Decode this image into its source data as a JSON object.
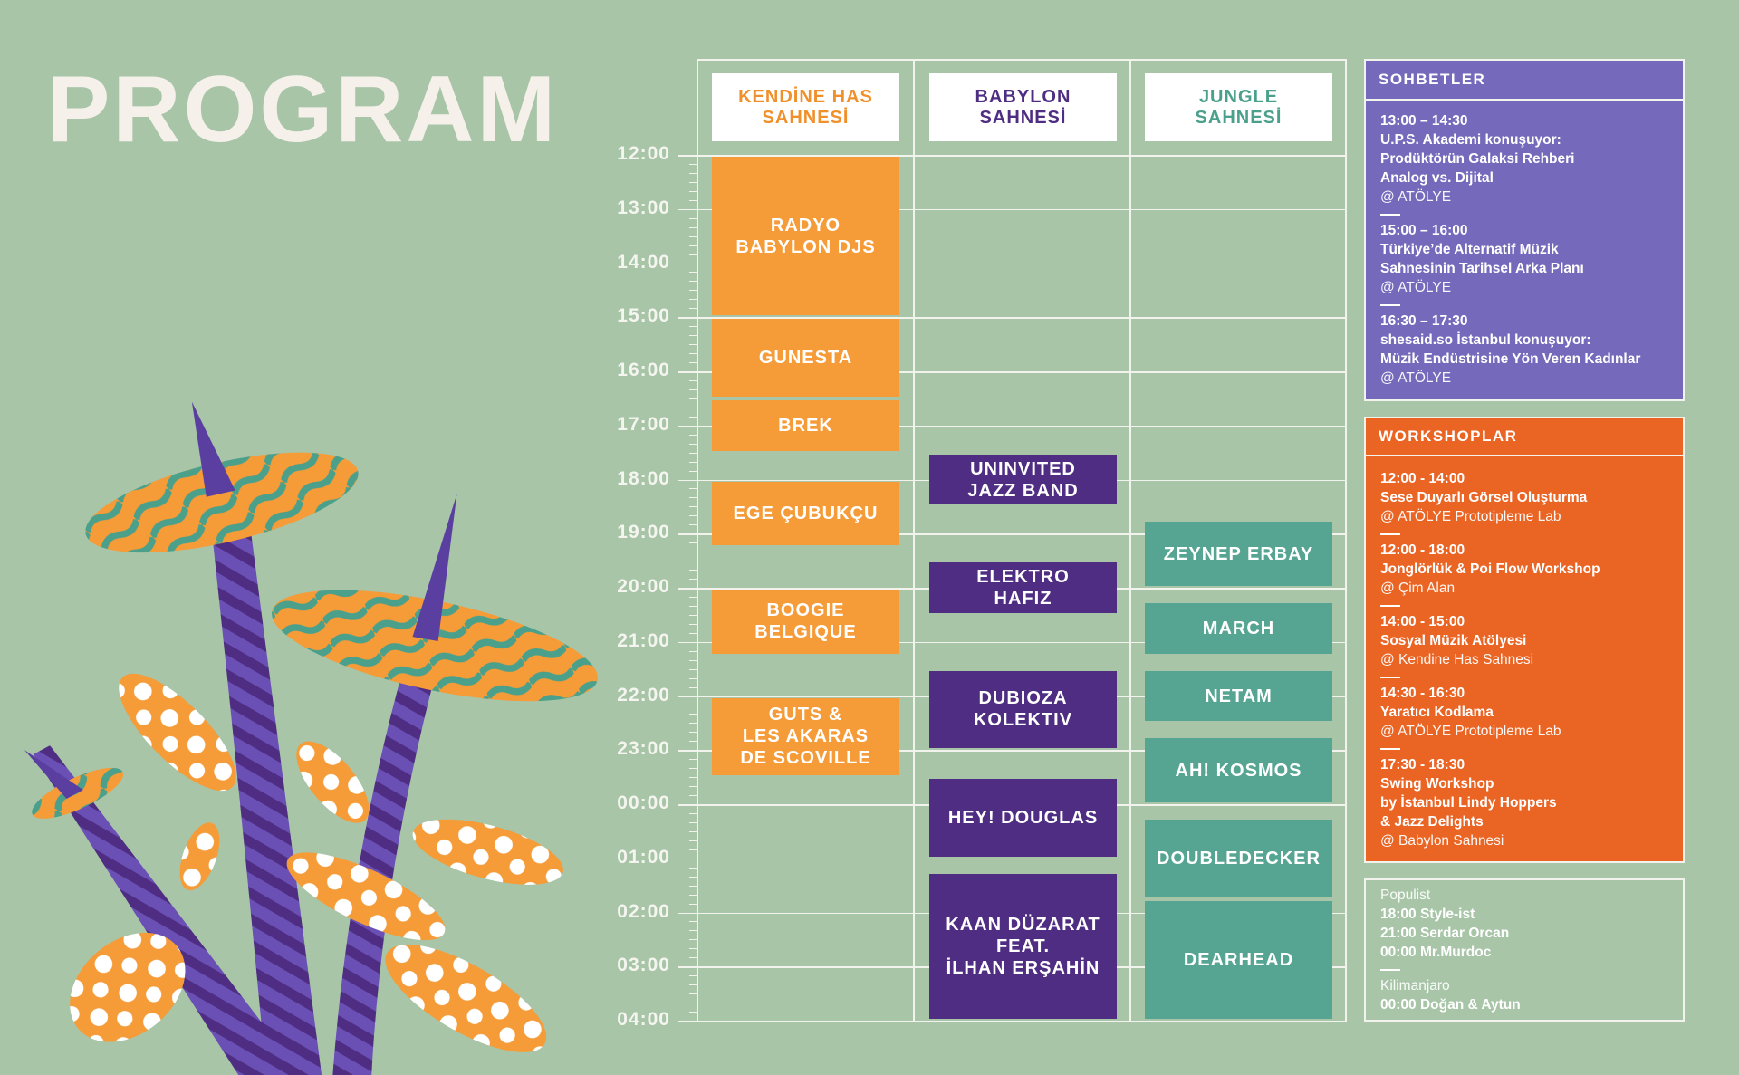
{
  "title": "PROGRAM",
  "colors": {
    "background": "#a8c5a8",
    "orange": "#f59b38",
    "purple": "#4e2d82",
    "teal": "#56a592",
    "talks": "#7569bb",
    "workshops": "#ea6424"
  },
  "hours": [
    "12:00",
    "13:00",
    "14:00",
    "15:00",
    "16:00",
    "17:00",
    "18:00",
    "19:00",
    "20:00",
    "21:00",
    "22:00",
    "23:00",
    "00:00",
    "01:00",
    "02:00",
    "03:00",
    "04:00"
  ],
  "stages": [
    {
      "name": "KENDİNE HAS\nSAHNESİ",
      "color": "#f59b38",
      "head_color": "#f0902a",
      "events": [
        {
          "label": "RADYO\nBABYLON DJS",
          "start": "12:00",
          "end": "15:00"
        },
        {
          "label": "GUNESTA",
          "start": "15:00",
          "end": "16:30"
        },
        {
          "label": "BREK",
          "start": "16:30",
          "end": "17:30"
        },
        {
          "label": "EGE ÇUBUKÇU",
          "start": "18:00",
          "end": "19:15"
        },
        {
          "label": "BOOGIE\nBELGIQUE",
          "start": "20:00",
          "end": "21:15"
        },
        {
          "label": "GUTS &\nLES AKARAS\nDE SCOVILLE",
          "start": "22:00",
          "end": "23:30"
        }
      ]
    },
    {
      "name": "BABYLON\nSAHNESİ",
      "color": "#4e2d82",
      "head_color": "#4e2d82",
      "events": [
        {
          "label": "UNINVITED\nJAZZ BAND",
          "start": "17:30",
          "end": "18:30"
        },
        {
          "label": "ELEKTRO\nHAFIZ",
          "start": "19:30",
          "end": "20:30"
        },
        {
          "label": "DUBIOZA\nKOLEKTIV",
          "start": "21:30",
          "end": "23:00"
        },
        {
          "label": "HEY! DOUGLAS",
          "start": "23:30",
          "end": "01:00"
        },
        {
          "label": "KAAN DÜZARAT\nFEAT.\nİLHAN ERŞAHİN",
          "start": "01:15",
          "end": "04:00"
        }
      ]
    },
    {
      "name": "JUNGLE\nSAHNESİ",
      "color": "#56a592",
      "head_color": "#4aa08a",
      "events": [
        {
          "label": "ZEYNEP ERBAY",
          "start": "18:45",
          "end": "20:00"
        },
        {
          "label": "MARCH",
          "start": "20:15",
          "end": "21:15"
        },
        {
          "label": "NETAM",
          "start": "21:30",
          "end": "22:30"
        },
        {
          "label": "AH! KOSMOS",
          "start": "22:45",
          "end": "00:00"
        },
        {
          "label": "DOUBLEDECKER",
          "start": "00:15",
          "end": "01:45"
        },
        {
          "label": "DEARHEAD",
          "start": "01:45",
          "end": "04:00"
        }
      ]
    }
  ],
  "talks": {
    "heading": "SOHBETLER",
    "items": [
      {
        "time": "13:00 – 14:30",
        "title": [
          "U.P.S. Akademi konuşuyor:",
          "Prodüktörün Galaksi Rehberi",
          "Analog vs. Dijital"
        ],
        "venue": "@ ATÖLYE"
      },
      {
        "time": "15:00 – 16:00",
        "title": [
          "Türkiye’de Alternatif Müzik",
          "Sahnesinin Tarihsel Arka Planı"
        ],
        "venue": "@ ATÖLYE"
      },
      {
        "time": "16:30 – 17:30",
        "title": [
          "shesaid.so İstanbul konuşuyor:",
          "Müzik Endüstrisine Yön Veren Kadınlar"
        ],
        "venue": "@ ATÖLYE"
      }
    ]
  },
  "workshops": {
    "heading": "WORKSHOPLAR",
    "items": [
      {
        "time": "12:00 - 14:00",
        "title": [
          "Sese Duyarlı Görsel Oluşturma"
        ],
        "venue": "@ ATÖLYE Prototipleme Lab"
      },
      {
        "time": "12:00 - 18:00",
        "title": [
          "Jonglörlük & Poi Flow Workshop"
        ],
        "venue": "@ Çim Alan"
      },
      {
        "time": "14:00 - 15:00",
        "title": [
          "Sosyal Müzik Atölyesi"
        ],
        "venue": "@ Kendine Has Sahnesi"
      },
      {
        "time": "14:30 - 16:30",
        "title": [
          "Yaratıcı Kodlama"
        ],
        "venue": "@ ATÖLYE Prototipleme Lab"
      },
      {
        "time": "17:30 - 18:30",
        "title": [
          "Swing Workshop",
          "by İstanbul Lindy Hoppers",
          "& Jazz Delights"
        ],
        "venue": "@ Babylon Sahnesi"
      }
    ]
  },
  "djs": [
    {
      "venue": "Populist",
      "sets": [
        "18:00 Style-ist",
        "21:00 Serdar Orcan",
        "00:00 Mr.Murdoc"
      ]
    },
    {
      "venue": "Kilimanjaro",
      "sets": [
        "00:00 Doğan & Aytun"
      ]
    }
  ]
}
